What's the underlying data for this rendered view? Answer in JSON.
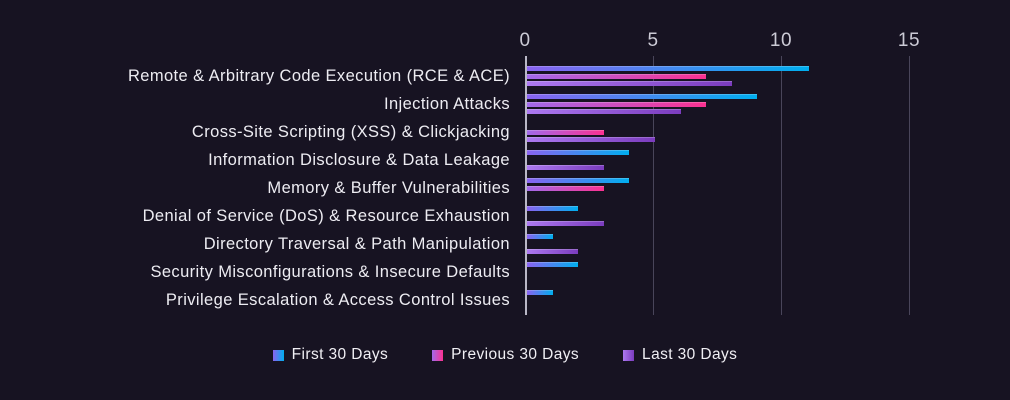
{
  "chart_data": {
    "type": "bar",
    "orientation": "horizontal",
    "title": "",
    "xlabel": "",
    "ylabel": "",
    "x_ticks": [
      0,
      5,
      10,
      15
    ],
    "xlim": [
      0,
      16
    ],
    "grid": true,
    "legend_position": "bottom",
    "categories": [
      "Remote & Arbitrary Code Execution (RCE & ACE)",
      "Injection Attacks",
      "Cross-Site Scripting (XSS) & Clickjacking",
      "Information Disclosure & Data Leakage",
      "Memory & Buffer Vulnerabilities",
      "Denial of Service (DoS) & Resource Exhaustion",
      "Directory Traversal & Path Manipulation",
      "Security Misconfigurations & Insecure Defaults",
      "Privilege Escalation & Access Control Issues"
    ],
    "series": [
      {
        "name": "First 30 Days",
        "values": [
          11,
          9,
          0,
          4,
          4,
          2,
          1,
          2,
          1
        ],
        "gradient_start": "#8a63f0",
        "gradient_end": "#00aeef"
      },
      {
        "name": "Previous 30 Days",
        "values": [
          7,
          7,
          3,
          0,
          3,
          0,
          0,
          0,
          0
        ],
        "gradient_start": "#a26aeb",
        "gradient_end": "#fb3191"
      },
      {
        "name": "Last 30 Days",
        "values": [
          8,
          6,
          5,
          3,
          0,
          3,
          2,
          0,
          0
        ],
        "gradient_start": "#ac79f0",
        "gradient_end": "#7b3cbe"
      }
    ]
  },
  "colors": {
    "background": "#171322",
    "axis_line": "#b9b7c6",
    "gridline": "#49455a",
    "tick_text": "#cccbd6",
    "label_text": "#edecf2"
  }
}
